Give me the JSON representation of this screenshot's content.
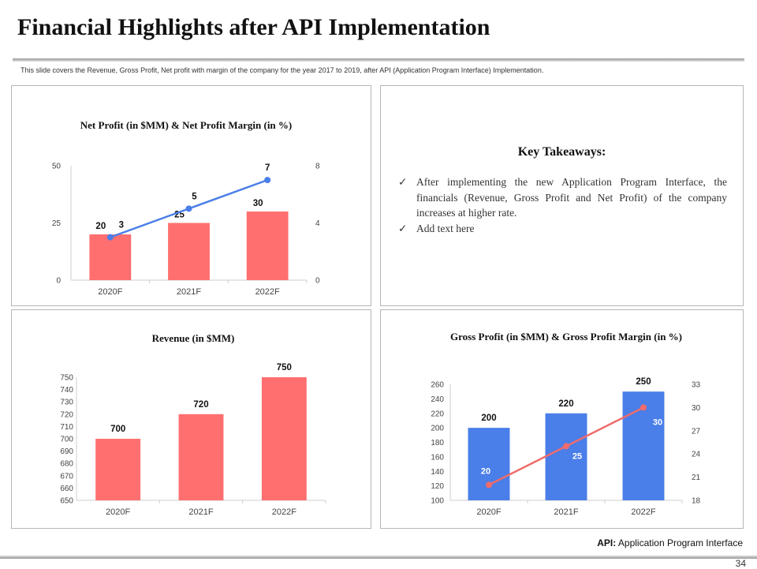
{
  "page": {
    "title": "Financial Highlights after API Implementation",
    "subtitle": "This slide covers the Revenue, Gross Profit, Net profit with margin of the company for the year 2017 to 2019, after API (Application Program Interface) Implementation.",
    "api_note_label": "API:",
    "api_note_text": "Application Program Interface",
    "page_number": "34"
  },
  "takeaways": {
    "title": "Key Takeaways:",
    "check_icon": "check-icon",
    "items": [
      "After implementing the new Application Program Interface, the financials (Revenue, Gross Profit and Net Profit) of the company increases at higher rate.",
      "Add text here"
    ]
  },
  "colors": {
    "bar_red": "#ff6f6f",
    "bar_blue": "#4a7ee8",
    "line_blue": "#4a7ee8",
    "line_red": "#f06b6b",
    "axis": "#cfcfcf"
  },
  "chart_data": [
    {
      "id": "net_profit",
      "type": "bar",
      "title": "Net Profit (in $MM) & Net Profit Margin (in %)",
      "categories": [
        "2020F",
        "2021F",
        "2022F"
      ],
      "series": [
        {
          "name": "Net Profit (in $MM)",
          "kind": "bar",
          "axis": "left",
          "values": [
            20,
            25,
            30
          ]
        },
        {
          "name": "Net Profit Margin (in %)",
          "kind": "line",
          "axis": "right",
          "values": [
            3,
            5,
            7
          ]
        }
      ],
      "y_left": {
        "min": 0,
        "max": 50,
        "ticks": [
          0,
          25,
          50
        ]
      },
      "y_right": {
        "min": 0,
        "max": 8,
        "ticks": [
          0,
          4,
          8
        ]
      }
    },
    {
      "id": "revenue",
      "type": "bar",
      "title": "Revenue (in $MM)",
      "categories": [
        "2020F",
        "2021F",
        "2022F"
      ],
      "series": [
        {
          "name": "Revenue (in $MM)",
          "kind": "bar",
          "axis": "left",
          "values": [
            700,
            720,
            750
          ]
        }
      ],
      "y_left": {
        "min": 650,
        "max": 750,
        "ticks": [
          650,
          660,
          670,
          680,
          690,
          700,
          710,
          720,
          730,
          740,
          750
        ]
      }
    },
    {
      "id": "gross_profit",
      "type": "bar",
      "title": "Gross Profit (in $MM) & Gross Profit Margin (in %)",
      "categories": [
        "2020F",
        "2021F",
        "2022F"
      ],
      "series": [
        {
          "name": "Gross Profit (in $MM)",
          "kind": "bar",
          "axis": "left",
          "values": [
            200,
            220,
            250
          ]
        },
        {
          "name": "Gross Profit Margin (in %)",
          "kind": "line",
          "axis": "right",
          "values": [
            20,
            25,
            30
          ]
        }
      ],
      "y_left": {
        "min": 100,
        "max": 260,
        "ticks": [
          100,
          120,
          140,
          160,
          180,
          200,
          220,
          240,
          260
        ]
      },
      "y_right": {
        "min": 18,
        "max": 33,
        "ticks": [
          18,
          21,
          24,
          27,
          30,
          33
        ]
      }
    }
  ]
}
